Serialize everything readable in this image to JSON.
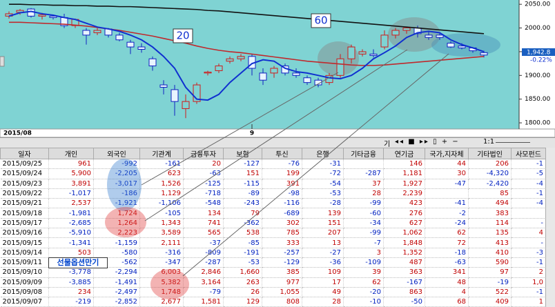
{
  "chart_data": {
    "type": "candlestick",
    "open": [
      2025,
      2033,
      2040,
      2025,
      2025,
      2022,
      2005,
      1995,
      1990,
      1998,
      1985,
      1970,
      1960,
      1935,
      1880,
      1870,
      1830,
      1845,
      1905,
      1910,
      1930,
      1935,
      1940,
      1905,
      1905,
      1920,
      1905,
      1895,
      1890,
      1885,
      1900,
      1935,
      1945,
      1945,
      1960,
      1985,
      1995,
      2000,
      1985,
      1985,
      1968,
      1962,
      1958,
      1948
    ],
    "high": [
      2035,
      2040,
      2042,
      2032,
      2028,
      2030,
      2020,
      2000,
      2000,
      2000,
      1990,
      1975,
      1968,
      1940,
      1890,
      1880,
      1860,
      1885,
      1910,
      1925,
      1940,
      1945,
      1945,
      1915,
      1920,
      1925,
      1915,
      1900,
      1895,
      1905,
      1945,
      1965,
      1955,
      1955,
      1995,
      2000,
      2003,
      2005,
      1992,
      1990,
      1972,
      1968,
      1960,
      1952
    ],
    "low": [
      2020,
      2028,
      2022,
      2018,
      2018,
      2000,
      2000,
      1965,
      1985,
      1980,
      1972,
      1945,
      1948,
      1910,
      1860,
      1815,
      1810,
      1840,
      1900,
      1905,
      1925,
      1930,
      1900,
      1880,
      1895,
      1900,
      1895,
      1880,
      1875,
      1880,
      1895,
      1925,
      1940,
      1938,
      1955,
      1978,
      1988,
      1980,
      1975,
      1975,
      1958,
      1955,
      1948,
      1938
    ],
    "close": [
      2030,
      2037,
      2025,
      2028,
      2022,
      2005,
      2018,
      1985,
      1995,
      1985,
      1975,
      1960,
      1955,
      1920,
      1875,
      1845,
      1845,
      1880,
      1907,
      1920,
      1935,
      1940,
      1915,
      1890,
      1915,
      1905,
      1900,
      1885,
      1880,
      1900,
      1935,
      1960,
      1950,
      1942,
      1985,
      1995,
      2000,
      1988,
      1980,
      1980,
      1960,
      1958,
      1952,
      1943
    ],
    "lines": [
      {
        "color": "#111111",
        "values": [
          2050,
          2050,
          2049,
          2049,
          2048,
          2048,
          2047,
          2047,
          2046,
          2046,
          2045,
          2045,
          2044,
          2043,
          2042,
          2041,
          2040,
          2039,
          2037,
          2036,
          2034,
          2032,
          2030,
          2028,
          2026,
          2024,
          2022,
          2020,
          2018,
          2016,
          2014,
          2012,
          2010,
          2008,
          2006,
          2004,
          2002,
          2000,
          1998,
          1996,
          1994,
          1992,
          1990,
          1988
        ]
      },
      {
        "color": "#c0282c",
        "values": [
          2012,
          2012,
          2011,
          2010,
          2009,
          2008,
          2006,
          2004,
          2001,
          1998,
          1995,
          1991,
          1987,
          1983,
          1978,
          1973,
          1968,
          1962,
          1957,
          1953,
          1950,
          1948,
          1945,
          1942,
          1939,
          1936,
          1933,
          1930,
          1928,
          1926,
          1924,
          1922,
          1921,
          1921,
          1922,
          1924,
          1926,
          1928,
          1930,
          1932,
          1934,
          1936,
          1938,
          1940
        ]
      },
      {
        "color": "#1030d0",
        "values": [
          2025,
          2032,
          2035,
          2030,
          2027,
          2022,
          2018,
          2010,
          2002,
          1998,
          1993,
          1985,
          1975,
          1960,
          1940,
          1915,
          1875,
          1850,
          1848,
          1860,
          1885,
          1905,
          1925,
          1933,
          1930,
          1915,
          1908,
          1905,
          1900,
          1895,
          1893,
          1900,
          1915,
          1935,
          1948,
          1962,
          1980,
          1990,
          1993,
          1990,
          1975,
          1965,
          1958,
          1950
        ]
      }
    ],
    "ylim": [
      1787,
      2059
    ],
    "yticks": [
      {
        "value": 2050,
        "label": "2050.00"
      },
      {
        "value": 2000,
        "label": "2000.00"
      },
      {
        "value": 1950,
        "label": "1950.00"
      },
      {
        "value": 1900,
        "label": "1900.00"
      },
      {
        "value": 1850,
        "label": "1850.00"
      },
      {
        "value": 1800,
        "label": "1800.00"
      }
    ],
    "x_labels": [
      {
        "index": 0,
        "label": "2015/08"
      },
      {
        "index": 22,
        "label": "9"
      }
    ],
    "annotations": [
      "20",
      "60"
    ],
    "last_price_label": "1,942.8",
    "change_label": "-0.22%"
  },
  "controls": [
    "기",
    "1:1"
  ],
  "table": {
    "headers": [
      "일자",
      "개인",
      "외국인",
      "기관계",
      "금융투자",
      "보험",
      "투신",
      "은행",
      "기타금융",
      "연기금",
      "국가,지자체",
      "기타법인",
      "사모펀드"
    ],
    "rows": [
      [
        "2015/09/25",
        "961",
        "-992",
        "-161",
        "20",
        "-127",
        "-76",
        "-31",
        null,
        "146",
        "44",
        "206",
        "-1"
      ],
      [
        "2015/09/24",
        "5,900",
        "-2,205",
        "623",
        "-63",
        "151",
        "199",
        "-72",
        "-287",
        "1,181",
        "30",
        "-4,320",
        "-5"
      ],
      [
        "2015/09/23",
        "3,891",
        "-3,017",
        "1,526",
        "-125",
        "-115",
        "391",
        "-54",
        "37",
        "1,927",
        "-47",
        "-2,420",
        "-4"
      ],
      [
        "2015/09/22",
        "-1,017",
        "-186",
        "1,129",
        "-718",
        "-89",
        "-98",
        "-53",
        "28",
        "2,239",
        null,
        "85",
        "-1"
      ],
      [
        "2015/09/21",
        "2,537",
        "-1,921",
        "-1,106",
        "-548",
        "-243",
        "-116",
        "-28",
        "-99",
        "423",
        "-41",
        "494",
        "-4"
      ],
      [
        "2015/09/18",
        "-1,981",
        "1,724",
        "-105",
        "134",
        "79",
        "-689",
        "139",
        "-60",
        "276",
        "-2",
        "383",
        null
      ],
      [
        "2015/09/17",
        "-2,685",
        "1,264",
        "1,343",
        "741",
        "-362",
        "302",
        "151",
        "-34",
        "627",
        "-24",
        "114",
        "-"
      ],
      [
        "2015/09/16",
        "-5,910",
        "2,223",
        "3,589",
        "565",
        "538",
        "785",
        "207",
        "-99",
        "1,062",
        "62",
        "135",
        "4"
      ],
      [
        "2015/09/15",
        "-1,341",
        "-1,159",
        "2,111",
        "-37",
        "-85",
        "333",
        "13",
        "-7",
        "1,848",
        "72",
        "413",
        "-"
      ],
      [
        "2015/09/14",
        "503",
        "-580",
        "-316",
        "-809",
        "-191",
        "-257",
        "-27",
        "3",
        "1,352",
        "-18",
        "410",
        "-3"
      ],
      [
        "2015/09/11",
        null,
        "-562",
        "-347",
        "-287",
        "-53",
        "-129",
        "-36",
        "-109",
        "487",
        "-63",
        "590",
        "-1"
      ],
      [
        "2015/09/10",
        "-3,778",
        "-2,294",
        "6,003",
        "2,846",
        "1,660",
        "385",
        "109",
        "39",
        "363",
        "341",
        "97",
        "2"
      ],
      [
        "2015/09/09",
        "-3,885",
        "-1,491",
        "5,382",
        "3,164",
        "263",
        "977",
        "17",
        "62",
        "-167",
        "48",
        "-19",
        "1,0"
      ],
      [
        "2015/09/08",
        "234",
        "-2,497",
        "1,748",
        "-79",
        "26",
        "1,055",
        "49",
        "-20",
        "863",
        "4",
        "522",
        "-1"
      ],
      [
        "2015/09/07",
        "-219",
        "-2,852",
        "2,677",
        "1,581",
        "129",
        "808",
        "28",
        "-10",
        "-50",
        "68",
        "409",
        "1"
      ]
    ]
  },
  "annotation": "선물옵션만기"
}
